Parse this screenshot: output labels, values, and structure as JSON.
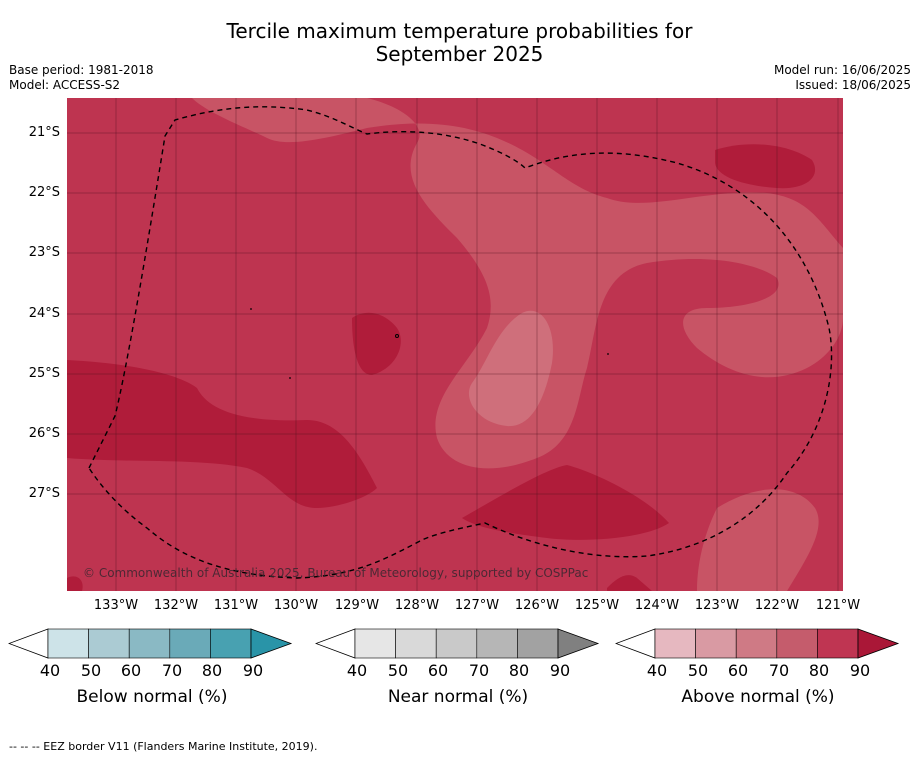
{
  "title_line1": "Tercile maximum temperature probabilities for",
  "title_line2": "September 2025",
  "base_period": "Base period: 1981-2018",
  "model": "Model: ACCESS-S2",
  "model_run": "Model run: 16/06/2025",
  "issued": "Issued: 18/06/2025",
  "copyright": "© Commonwealth of Australia 2025, Bureau of Meteorology, supported by COSPPac",
  "footer": "--  --  -- EEZ border V11 (Flanders Marine Institute, 2019).",
  "map": {
    "lat_labels": [
      "21°S",
      "22°S",
      "23°S",
      "24°S",
      "25°S",
      "26°S",
      "27°S"
    ],
    "lon_labels": [
      "133°W",
      "132°W",
      "131°W",
      "130°W",
      "129°W",
      "128°W",
      "127°W",
      "126°W",
      "125°W",
      "124°W",
      "123°W",
      "122°W",
      "121°W"
    ],
    "colors": {
      "above_70_80": "#be3450",
      "above_80_90": "#b01c3a",
      "above_60_70": "#c85465",
      "above_50_60": "#cf6f7b"
    }
  },
  "colorbars": [
    {
      "title": "Below normal (%)",
      "ticks": [
        "40",
        "50",
        "60",
        "70",
        "80",
        "90"
      ],
      "colors": [
        "#ffffff",
        "#cde3e8",
        "#abcbd3",
        "#8ab9c4",
        "#6aaab8",
        "#48a1b1",
        "#2994a8"
      ]
    },
    {
      "title": "Near normal (%)",
      "ticks": [
        "40",
        "50",
        "60",
        "70",
        "80",
        "90"
      ],
      "colors": [
        "#ffffff",
        "#e6e6e6",
        "#d9d9d9",
        "#c9c9c9",
        "#b6b6b6",
        "#a2a2a2",
        "#808080"
      ]
    },
    {
      "title": "Above normal (%)",
      "ticks": [
        "40",
        "50",
        "60",
        "70",
        "80",
        "90"
      ],
      "colors": [
        "#ffffff",
        "#e6b8c0",
        "#d99aa3",
        "#cf7a85",
        "#c55c6c",
        "#bf3552",
        "#aa1737"
      ]
    }
  ]
}
